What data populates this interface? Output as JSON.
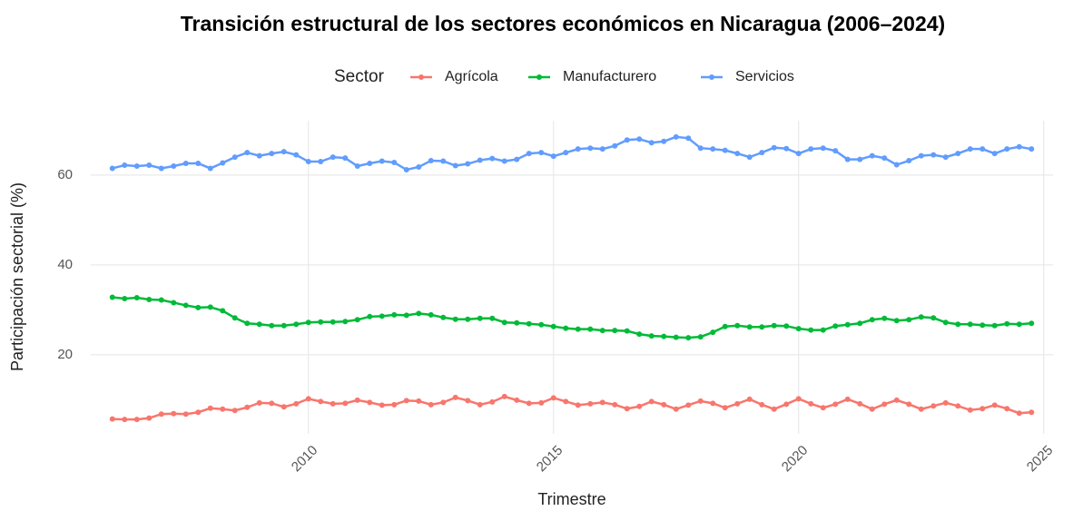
{
  "chart_data": {
    "type": "line",
    "title": "Transición estructural de los sectores económicos en Nicaragua (2006–2024)",
    "legend_title": "Sector",
    "legend_position": "top",
    "x_label": "Trimestre",
    "y_label": "Participación sectorial (%)",
    "x": [
      2006,
      2006.25,
      2006.5,
      2006.75,
      2007,
      2007.25,
      2007.5,
      2007.75,
      2008,
      2008.25,
      2008.5,
      2008.75,
      2009,
      2009.25,
      2009.5,
      2009.75,
      2010,
      2010.25,
      2010.5,
      2010.75,
      2011,
      2011.25,
      2011.5,
      2011.75,
      2012,
      2012.25,
      2012.5,
      2012.75,
      2013,
      2013.25,
      2013.5,
      2013.75,
      2014,
      2014.25,
      2014.5,
      2014.75,
      2015,
      2015.25,
      2015.5,
      2015.75,
      2016,
      2016.25,
      2016.5,
      2016.75,
      2017,
      2017.25,
      2017.5,
      2017.75,
      2018,
      2018.25,
      2018.5,
      2018.75,
      2019,
      2019.25,
      2019.5,
      2019.75,
      2020,
      2020.25,
      2020.5,
      2020.75,
      2021,
      2021.25,
      2021.5,
      2021.75,
      2022,
      2022.25,
      2022.5,
      2022.75,
      2023,
      2023.25,
      2023.5,
      2023.75,
      2024,
      2024.25,
      2024.5,
      2024.75
    ],
    "series": [
      {
        "name": "Agrícola",
        "color": "#F8766D",
        "values": [
          5.7,
          5.6,
          5.6,
          5.9,
          6.8,
          6.9,
          6.8,
          7.2,
          8.1,
          7.9,
          7.6,
          8.3,
          9.3,
          9.2,
          8.4,
          9.1,
          10.2,
          9.6,
          9.1,
          9.2,
          9.9,
          9.4,
          8.8,
          8.9,
          9.8,
          9.7,
          8.9,
          9.4,
          10.5,
          9.8,
          8.9,
          9.5,
          10.7,
          9.9,
          9.2,
          9.3,
          10.4,
          9.6,
          8.8,
          9.1,
          9.4,
          8.9,
          8.0,
          8.5,
          9.6,
          8.9,
          7.9,
          8.8,
          9.7,
          9.2,
          8.2,
          9.1,
          10.1,
          8.9,
          7.9,
          9.0,
          10.2,
          9.1,
          8.2,
          9.0,
          10.1,
          9.1,
          7.9,
          9.0,
          9.9,
          9.0,
          7.9,
          8.6,
          9.3,
          8.6,
          7.7,
          8.0,
          8.8,
          8.0,
          7.0,
          7.2
        ]
      },
      {
        "name": "Manufacturero",
        "color": "#00BA38",
        "values": [
          32.8,
          32.5,
          32.7,
          32.3,
          32.2,
          31.6,
          31.0,
          30.5,
          30.6,
          29.8,
          28.2,
          27.0,
          26.8,
          26.5,
          26.5,
          26.8,
          27.2,
          27.3,
          27.3,
          27.4,
          27.8,
          28.5,
          28.6,
          28.9,
          28.8,
          29.2,
          28.9,
          28.3,
          27.9,
          27.9,
          28.1,
          28.1,
          27.2,
          27.1,
          26.9,
          26.7,
          26.3,
          25.9,
          25.7,
          25.7,
          25.4,
          25.4,
          25.3,
          24.6,
          24.2,
          24.1,
          23.9,
          23.8,
          24.0,
          25.0,
          26.3,
          26.5,
          26.2,
          26.2,
          26.5,
          26.4,
          25.8,
          25.5,
          25.5,
          26.4,
          26.7,
          27.0,
          27.8,
          28.1,
          27.6,
          27.8,
          28.4,
          28.2,
          27.2,
          26.8,
          26.8,
          26.6,
          26.5,
          26.9,
          26.8,
          27.0
        ]
      },
      {
        "name": "Servicios",
        "color": "#619CFF",
        "values": [
          61.5,
          62.2,
          62.0,
          62.2,
          61.5,
          62.0,
          62.6,
          62.6,
          61.5,
          62.7,
          64.0,
          65.0,
          64.3,
          64.8,
          65.2,
          64.5,
          63.0,
          63.0,
          64.0,
          63.8,
          62.0,
          62.6,
          63.1,
          62.8,
          61.2,
          61.8,
          63.2,
          63.1,
          62.1,
          62.5,
          63.3,
          63.7,
          63.1,
          63.5,
          64.8,
          65.0,
          64.2,
          65.0,
          65.8,
          66.0,
          65.8,
          66.5,
          67.8,
          68.0,
          67.2,
          67.5,
          68.5,
          68.2,
          66.0,
          65.8,
          65.5,
          64.8,
          64.0,
          65.0,
          66.1,
          65.9,
          64.8,
          65.8,
          66.0,
          65.4,
          63.5,
          63.5,
          64.3,
          63.8,
          62.3,
          63.2,
          64.3,
          64.5,
          64.0,
          64.8,
          65.8,
          65.8,
          64.8,
          65.8,
          66.3,
          65.8
        ]
      }
    ],
    "xlim": [
      2005.56,
      2025.19
    ],
    "xticks": [
      2010,
      2015,
      2020,
      2025
    ],
    "ylim": [
      2.4,
      72.1
    ],
    "yticks": [
      20,
      40,
      60
    ],
    "grid": true
  }
}
